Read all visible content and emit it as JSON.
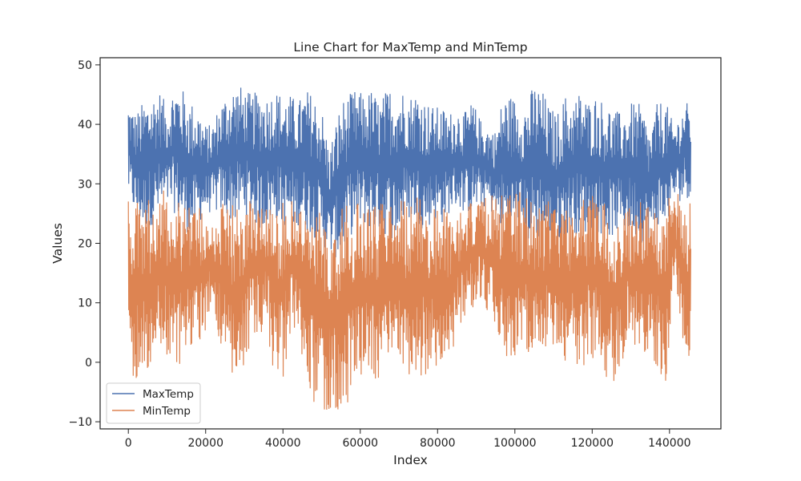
{
  "chart_data": {
    "type": "line",
    "title": "Line Chart for MaxTemp and MinTemp",
    "xlabel": "Index",
    "ylabel": "Values",
    "xlim": [
      -7300,
      153300
    ],
    "ylim": [
      -11.2,
      51.2
    ],
    "xticks": [
      0,
      20000,
      40000,
      60000,
      80000,
      100000,
      120000,
      140000
    ],
    "yticks": [
      -10,
      0,
      10,
      20,
      30,
      40,
      50
    ],
    "legend": {
      "position": "lower-left"
    },
    "grid": false,
    "series_envelope_note_free": true,
    "series": [
      {
        "name": "MaxTemp",
        "color": "#4c72b0",
        "envelope": [
          [
            0,
            28,
            44
          ],
          [
            2000,
            24,
            42
          ],
          [
            4000,
            22,
            44
          ],
          [
            6000,
            23,
            45
          ],
          [
            8000,
            24,
            46
          ],
          [
            10000,
            26,
            43
          ],
          [
            12000,
            25,
            47
          ],
          [
            14000,
            23,
            46
          ],
          [
            16000,
            21,
            44
          ],
          [
            18000,
            23,
            43
          ],
          [
            20000,
            25,
            40
          ],
          [
            21500,
            25,
            40
          ],
          [
            24000,
            25,
            44
          ],
          [
            26000,
            24,
            46
          ],
          [
            28000,
            23,
            47
          ],
          [
            30000,
            25,
            46
          ],
          [
            32000,
            24,
            45
          ],
          [
            34000,
            22,
            46
          ],
          [
            36000,
            23,
            45
          ],
          [
            38000,
            24,
            46
          ],
          [
            40000,
            23,
            45
          ],
          [
            42000,
            22,
            45
          ],
          [
            44000,
            23,
            44
          ],
          [
            46000,
            22,
            46
          ],
          [
            48000,
            21,
            45
          ],
          [
            50000,
            20,
            43
          ],
          [
            52000,
            18,
            36
          ],
          [
            55000,
            17,
            44
          ],
          [
            57000,
            21,
            45
          ],
          [
            59000,
            22,
            46
          ],
          [
            61000,
            23,
            45
          ],
          [
            63000,
            22,
            46
          ],
          [
            65000,
            22,
            44
          ],
          [
            67000,
            21,
            46
          ],
          [
            69000,
            20,
            47
          ],
          [
            71000,
            23,
            46
          ],
          [
            73000,
            24,
            45
          ],
          [
            75000,
            23,
            46
          ],
          [
            77000,
            22,
            44
          ],
          [
            79000,
            24,
            43
          ],
          [
            81000,
            23,
            43
          ],
          [
            83000,
            25,
            42
          ],
          [
            85000,
            26,
            43
          ],
          [
            87000,
            25,
            42
          ],
          [
            89000,
            25,
            44
          ],
          [
            91000,
            26,
            41
          ],
          [
            93000,
            26,
            40
          ],
          [
            95000,
            24,
            39
          ],
          [
            97000,
            22,
            45
          ],
          [
            99000,
            21,
            45
          ],
          [
            101000,
            22,
            44
          ],
          [
            103000,
            20,
            44
          ],
          [
            105000,
            20,
            47
          ],
          [
            107000,
            21,
            46
          ],
          [
            109000,
            19,
            43
          ],
          [
            111000,
            20,
            42
          ],
          [
            113000,
            21,
            45
          ],
          [
            115000,
            22,
            44
          ],
          [
            117000,
            21,
            46
          ],
          [
            119000,
            22,
            44
          ],
          [
            121000,
            22,
            45
          ],
          [
            123000,
            21,
            44
          ],
          [
            125000,
            21,
            43
          ],
          [
            127000,
            22,
            42
          ],
          [
            129000,
            22,
            43
          ],
          [
            131000,
            21,
            44
          ],
          [
            133000,
            20,
            43
          ],
          [
            135000,
            20,
            39
          ],
          [
            137000,
            23,
            44
          ],
          [
            139000,
            22,
            44
          ],
          [
            141000,
            27,
            40
          ],
          [
            143000,
            27,
            42
          ],
          [
            144000,
            28,
            44
          ],
          [
            145500,
            27,
            43
          ]
        ]
      },
      {
        "name": "MinTemp",
        "color": "#dd8452",
        "envelope": [
          [
            0,
            -2,
            28
          ],
          [
            2000,
            -3,
            27
          ],
          [
            4000,
            -2,
            27
          ],
          [
            6000,
            -1,
            28
          ],
          [
            8000,
            1,
            29
          ],
          [
            10000,
            0,
            29
          ],
          [
            12000,
            -3,
            29
          ],
          [
            14000,
            -1,
            28
          ],
          [
            16000,
            2,
            28
          ],
          [
            18000,
            3,
            27
          ],
          [
            20000,
            5,
            24
          ],
          [
            21500,
            10,
            24
          ],
          [
            24000,
            1,
            27
          ],
          [
            26000,
            -3,
            26
          ],
          [
            28000,
            -5,
            28
          ],
          [
            30000,
            -2,
            28
          ],
          [
            32000,
            5,
            27
          ],
          [
            34000,
            5,
            28
          ],
          [
            36000,
            5,
            28
          ],
          [
            38000,
            -4,
            28
          ],
          [
            40000,
            -3,
            27
          ],
          [
            42000,
            5,
            28
          ],
          [
            44000,
            6,
            27
          ],
          [
            46000,
            -6,
            27
          ],
          [
            48000,
            -7,
            26
          ],
          [
            50000,
            -8,
            25
          ],
          [
            52000,
            -8,
            24
          ],
          [
            55000,
            -8,
            26
          ],
          [
            57000,
            -7,
            27
          ],
          [
            59000,
            -5,
            27
          ],
          [
            61000,
            -3,
            28
          ],
          [
            63000,
            -3,
            27
          ],
          [
            65000,
            -3,
            27
          ],
          [
            67000,
            0,
            28
          ],
          [
            69000,
            2,
            29
          ],
          [
            71000,
            -3,
            28
          ],
          [
            73000,
            -2,
            27
          ],
          [
            75000,
            -3,
            28
          ],
          [
            77000,
            -2,
            27
          ],
          [
            79000,
            -1,
            26
          ],
          [
            81000,
            -1,
            27
          ],
          [
            83000,
            -2,
            27
          ],
          [
            85000,
            5,
            26
          ],
          [
            87000,
            6,
            27
          ],
          [
            89000,
            9,
            27
          ],
          [
            91000,
            11,
            27
          ],
          [
            93000,
            7,
            28
          ],
          [
            95000,
            6,
            29
          ],
          [
            97000,
            1,
            28
          ],
          [
            99000,
            1,
            29
          ],
          [
            101000,
            0,
            29
          ],
          [
            103000,
            2,
            28
          ],
          [
            105000,
            0,
            27
          ],
          [
            107000,
            -1,
            28
          ],
          [
            109000,
            2,
            28
          ],
          [
            111000,
            3,
            27
          ],
          [
            113000,
            0,
            27
          ],
          [
            115000,
            0,
            28
          ],
          [
            117000,
            -1,
            28
          ],
          [
            119000,
            0,
            29
          ],
          [
            121000,
            1,
            28
          ],
          [
            123000,
            -3,
            28
          ],
          [
            125000,
            -4,
            27
          ],
          [
            127000,
            -2,
            26
          ],
          [
            129000,
            3,
            27
          ],
          [
            131000,
            2,
            27
          ],
          [
            133000,
            2,
            27
          ],
          [
            135000,
            1,
            26
          ],
          [
            137000,
            -3,
            29
          ],
          [
            139000,
            -5,
            28
          ],
          [
            141000,
            13,
            29
          ],
          [
            143000,
            6,
            28
          ],
          [
            144000,
            -1,
            28
          ],
          [
            145500,
            1,
            27
          ]
        ]
      }
    ]
  }
}
